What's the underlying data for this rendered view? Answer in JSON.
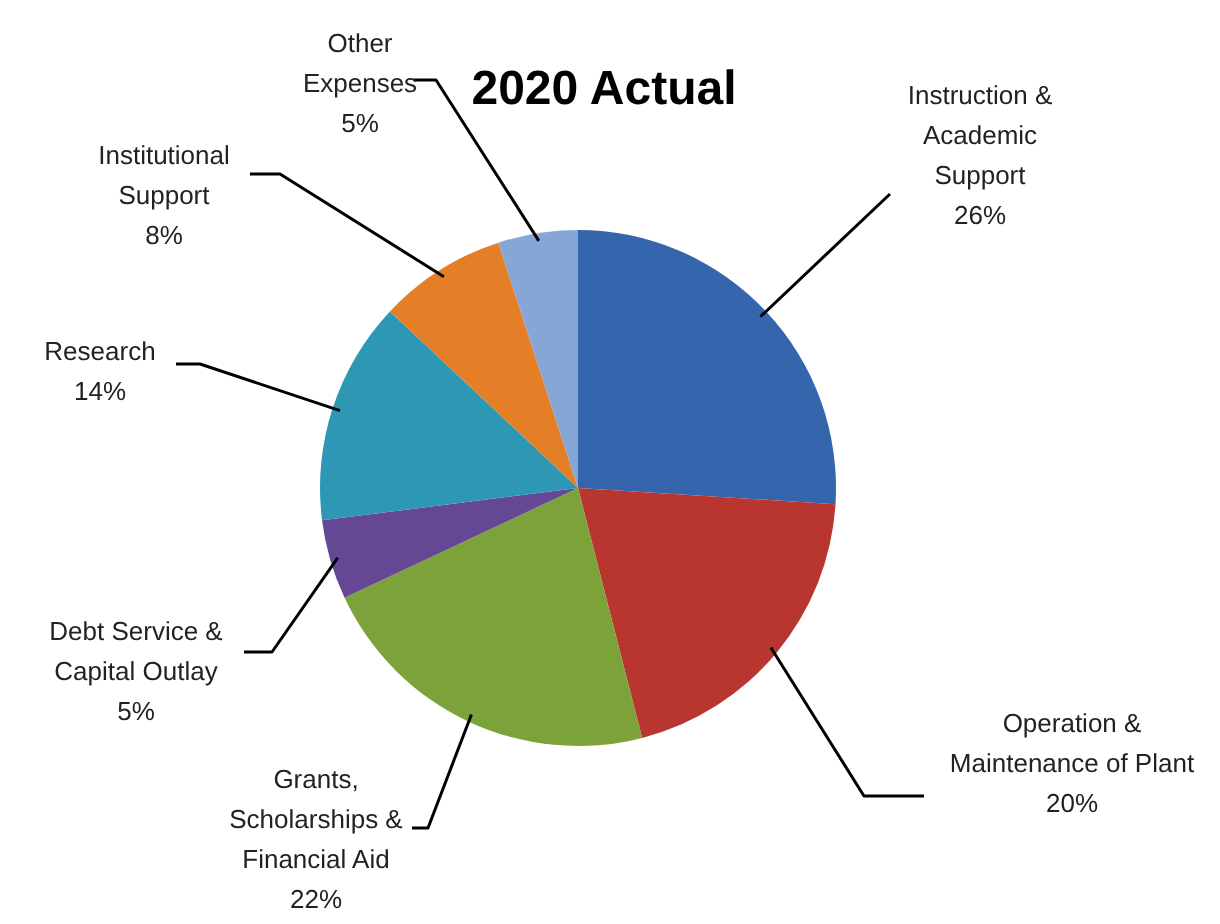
{
  "chart_data": {
    "type": "pie",
    "title": "2020 Actual",
    "categories": [
      "Instruction & Academic Support",
      "Operation & Maintenance of Plant",
      "Grants, Scholarships & Financial Aid",
      "Debt Service & Capital Outlay",
      "Research",
      "Institutional Support",
      "Other Expenses"
    ],
    "values": [
      26,
      20,
      22,
      5,
      14,
      8,
      5
    ],
    "colors": [
      "#3566ad",
      "#b8362f",
      "#7da23a",
      "#644893",
      "#2e97b4",
      "#e57f27",
      "#87a6d8"
    ],
    "value_labels": [
      "26%",
      "20%",
      "22%",
      "5%",
      "14%",
      "8%",
      "5%"
    ]
  }
}
